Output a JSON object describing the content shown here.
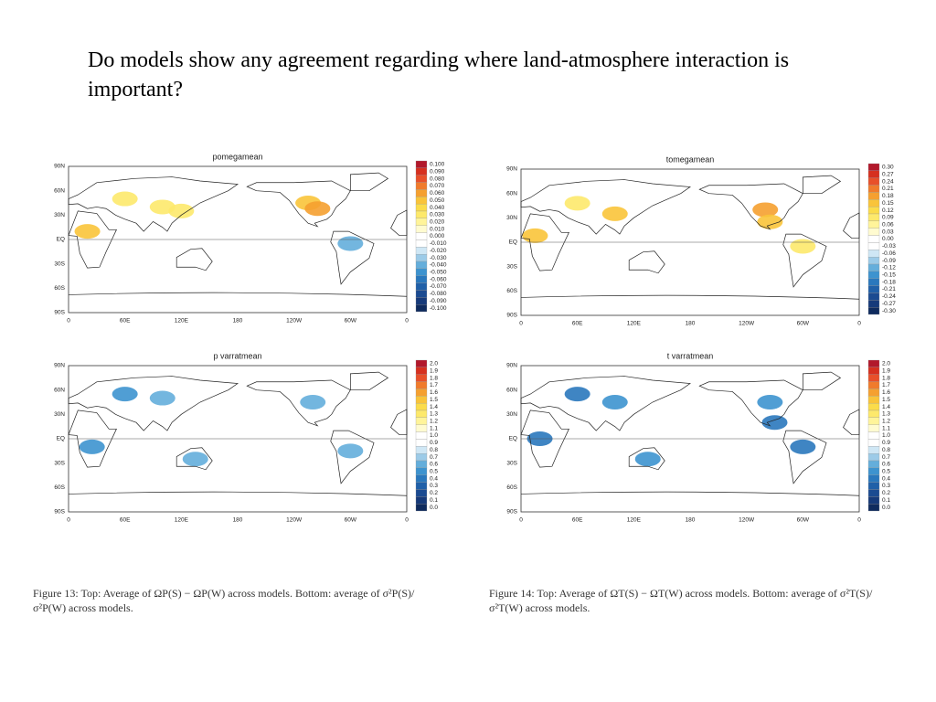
{
  "title": "Do models show any agreement regarding where land-atmosphere interaction is important?",
  "panels": [
    {
      "title": "pomegamean",
      "lat_labels": [
        "90N",
        "60N",
        "30N",
        "EQ",
        "30S",
        "60S",
        "90S"
      ],
      "lon_labels": [
        "0",
        "60E",
        "120E",
        "180",
        "120W",
        "60W",
        "0"
      ],
      "colorbar_labels": [
        "0.100",
        "0.090",
        "0.080",
        "0.070",
        "0.060",
        "0.050",
        "0.040",
        "0.030",
        "0.020",
        "0.010",
        "0.000",
        "-0.010",
        "-0.020",
        "-0.030",
        "-0.040",
        "-0.050",
        "-0.060",
        "-0.070",
        "-0.080",
        "-0.090",
        "-0.100"
      ]
    },
    {
      "title": "tomegamean",
      "lat_labels": [
        "90N",
        "60N",
        "30N",
        "EQ",
        "30S",
        "60S",
        "90S"
      ],
      "lon_labels": [
        "0",
        "60E",
        "120E",
        "180",
        "120W",
        "60W",
        "0"
      ],
      "colorbar_labels": [
        "0.30",
        "0.27",
        "0.24",
        "0.21",
        "0.18",
        "0.15",
        "0.12",
        "0.09",
        "0.06",
        "0.03",
        "0.00",
        "-0.03",
        "-0.06",
        "-0.09",
        "-0.12",
        "-0.15",
        "-0.18",
        "-0.21",
        "-0.24",
        "-0.27",
        "-0.30"
      ]
    },
    {
      "title": "p varratmean",
      "lat_labels": [
        "90N",
        "60N",
        "30N",
        "EQ",
        "30S",
        "60S",
        "90S"
      ],
      "lon_labels": [
        "0",
        "60E",
        "120E",
        "180",
        "120W",
        "60W",
        "0"
      ],
      "colorbar_labels": [
        "2.0",
        "1.9",
        "1.8",
        "1.7",
        "1.6",
        "1.5",
        "1.4",
        "1.3",
        "1.2",
        "1.1",
        "1.0",
        "0.9",
        "0.8",
        "0.7",
        "0.6",
        "0.5",
        "0.4",
        "0.3",
        "0.2",
        "0.1",
        "0.0"
      ]
    },
    {
      "title": "t varratmean",
      "lat_labels": [
        "90N",
        "60N",
        "30N",
        "EQ",
        "30S",
        "60S",
        "90S"
      ],
      "lon_labels": [
        "0",
        "60E",
        "120E",
        "180",
        "120W",
        "60W",
        "0"
      ],
      "colorbar_labels": [
        "2.0",
        "1.9",
        "1.8",
        "1.7",
        "1.6",
        "1.5",
        "1.4",
        "1.3",
        "1.2",
        "1.1",
        "1.0",
        "0.9",
        "0.8",
        "0.7",
        "0.6",
        "0.5",
        "0.4",
        "0.3",
        "0.2",
        "0.1",
        "0.0"
      ]
    }
  ],
  "captions": [
    "Figure 13: Top: Average of ΩP(S) − ΩP(W) across models. Bottom: average of σ²P(S)/σ²P(W) across models.",
    "Figure 14: Top: Average of ΩT(S) − ΩT(W) across models. Bottom: average of σ²T(S)/σ²T(W) across models."
  ]
}
